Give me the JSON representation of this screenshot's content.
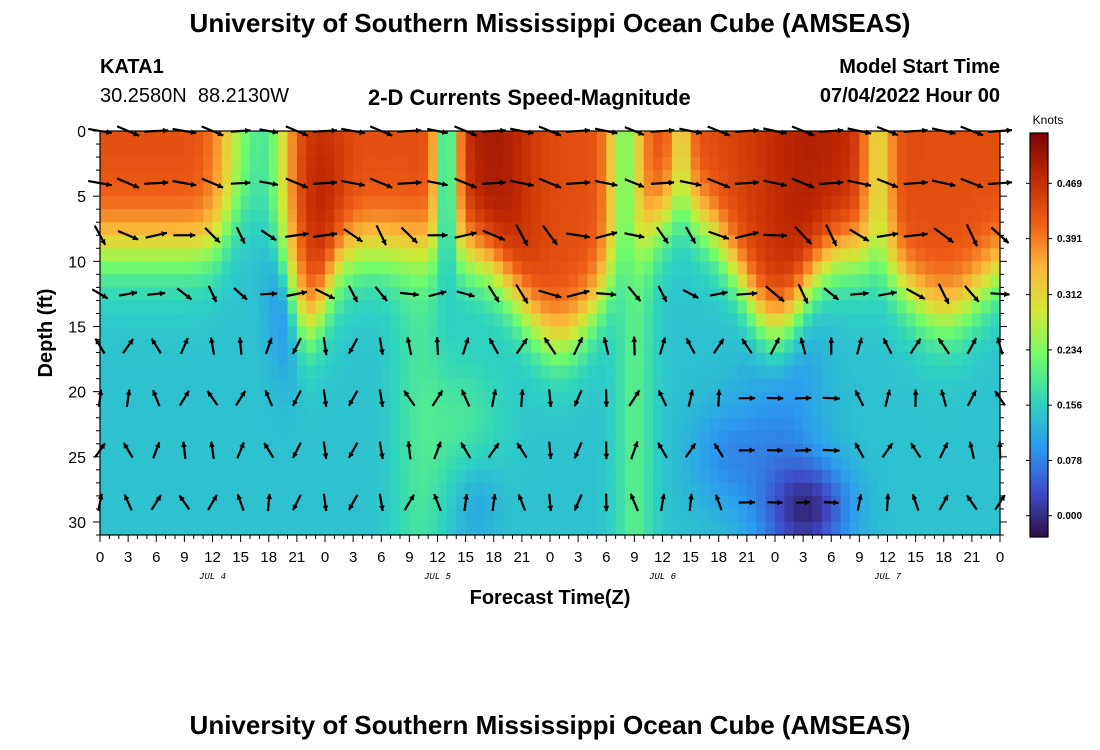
{
  "header": {
    "title": "University of Southern Mississippi Ocean Cube (AMSEAS)",
    "station_id": "KATA1",
    "coords": "30.2580N  88.2130W",
    "plot_title": "2-D Currents Speed-Magnitude",
    "model_start_label": "Model Start Time",
    "model_start_value": "07/04/2022 Hour 00"
  },
  "footer_title": "University of Southern Mississippi Ocean Cube (AMSEAS)",
  "chart_data": {
    "type": "heatmap",
    "title": "2-D Currents Speed-Magnitude",
    "xlabel": "Forecast Time(Z)",
    "ylabel": "Depth (ft)",
    "x_ticks": [
      "0",
      "3",
      "6",
      "9",
      "12",
      "15",
      "18",
      "21",
      "0",
      "3",
      "6",
      "9",
      "12",
      "15",
      "18",
      "21",
      "0",
      "3",
      "6",
      "9",
      "12",
      "15",
      "18",
      "21",
      "0",
      "3",
      "6",
      "9",
      "12",
      "15",
      "18",
      "21",
      "0"
    ],
    "x_range_hours": [
      0,
      96
    ],
    "day_labels": [
      {
        "label": "JUL 4",
        "hour": 12
      },
      {
        "label": "JUL 5",
        "hour": 36
      },
      {
        "label": "JUL 6",
        "hour": 60
      },
      {
        "label": "JUL 7",
        "hour": 84
      }
    ],
    "y_ticks": [
      0,
      5,
      10,
      15,
      20,
      25,
      30
    ],
    "ylim": [
      0,
      31
    ],
    "y_inverted": true,
    "colorbar": {
      "label": "Knots",
      "ticks": [
        0.0,
        0.078,
        0.156,
        0.234,
        0.312,
        0.391,
        0.469
      ],
      "tick_labels": [
        "0.000",
        "0.078",
        "0.156",
        "0.234",
        "0.312",
        "0.391",
        "0.469"
      ],
      "range": [
        -0.03,
        0.54
      ],
      "colors": [
        "#2d0f44",
        "#3f4bc9",
        "#2b9af0",
        "#2fd4bf",
        "#6ffb6c",
        "#d0ea37",
        "#fcb53a",
        "#ee5d15",
        "#bf2a03",
        "#7a0403"
      ]
    },
    "arrow_depths_ft": [
      0,
      4,
      8,
      12.5,
      16.5,
      20.5,
      24.5,
      28.5
    ],
    "arrow_hours": [
      0,
      3,
      6,
      9,
      12,
      15,
      18,
      21,
      24,
      27,
      30,
      33,
      36,
      39,
      42,
      45,
      48,
      51,
      54,
      57,
      60,
      63,
      66,
      69,
      72,
      75,
      78,
      81,
      84,
      87,
      90,
      93,
      96
    ]
  }
}
